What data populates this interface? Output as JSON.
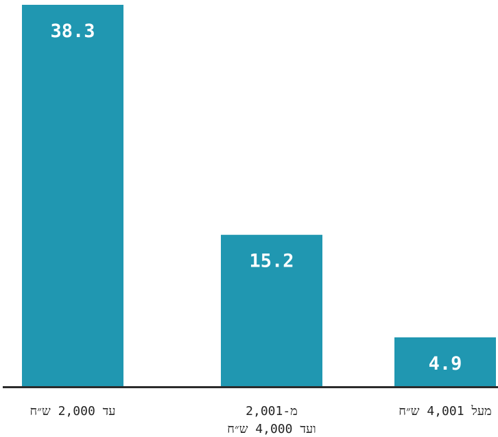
{
  "chart_data": {
    "type": "bar",
    "categories": [
      [
        "עד 2,000 ש״ח"
      ],
      [
        "מ-2,001",
        "ועד 4,000 ש״ח"
      ],
      [
        "מעל 4,001 ש״ח"
      ]
    ],
    "values": [
      38.3,
      15.2,
      4.9
    ],
    "value_labels": [
      "38.3",
      "15.2",
      "4.9"
    ],
    "ylim": [
      0,
      38.3
    ],
    "grid": false,
    "colors": {
      "bar": "#2097b1",
      "baseline": "#2b2b2b",
      "value_text": "#ffffff",
      "label_text": "#222222"
    }
  }
}
